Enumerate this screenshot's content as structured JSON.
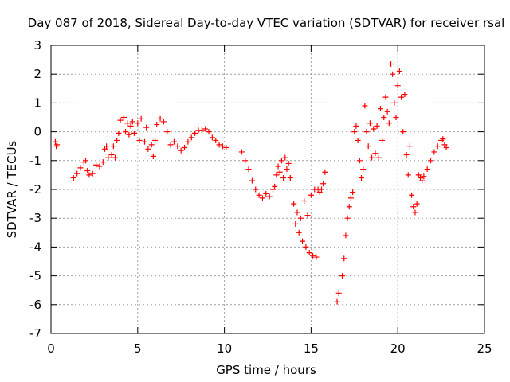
{
  "chart_data": {
    "type": "scatter",
    "title": "Day 087 of 2018, Sidereal Day-to-day VTEC variation (SDTVAR) for receiver rsal",
    "xlabel": "GPS time / hours",
    "ylabel": "SDTVAR / TECUs",
    "xlim": [
      0,
      25
    ],
    "ylim": [
      -7,
      3
    ],
    "xticks": [
      0,
      5,
      10,
      15,
      20,
      25
    ],
    "yticks": [
      3,
      2,
      1,
      0,
      -1,
      -2,
      -3,
      -4,
      -5,
      -6,
      -7
    ],
    "grid": true,
    "marker": "+",
    "color": "#ff0000",
    "series": [
      {
        "name": "SDTVAR",
        "points": [
          [
            0.25,
            -0.35
          ],
          [
            0.3,
            -0.5
          ],
          [
            0.35,
            -0.45
          ],
          [
            1.3,
            -1.6
          ],
          [
            1.5,
            -1.45
          ],
          [
            1.7,
            -1.25
          ],
          [
            1.9,
            -1.05
          ],
          [
            2.0,
            -1.0
          ],
          [
            2.1,
            -1.35
          ],
          [
            2.2,
            -1.5
          ],
          [
            2.4,
            -1.45
          ],
          [
            2.6,
            -1.15
          ],
          [
            2.8,
            -1.2
          ],
          [
            3.0,
            -1.05
          ],
          [
            3.1,
            -0.6
          ],
          [
            3.2,
            -0.5
          ],
          [
            3.3,
            -0.9
          ],
          [
            3.5,
            -0.8
          ],
          [
            3.6,
            -0.5
          ],
          [
            3.7,
            -0.9
          ],
          [
            3.8,
            -0.3
          ],
          [
            3.9,
            -0.05
          ],
          [
            4.0,
            0.4
          ],
          [
            4.2,
            0.5
          ],
          [
            4.3,
            0.0
          ],
          [
            4.4,
            0.3
          ],
          [
            4.5,
            -0.1
          ],
          [
            4.6,
            0.2
          ],
          [
            4.7,
            0.35
          ],
          [
            4.8,
            -0.05
          ],
          [
            5.0,
            0.3
          ],
          [
            5.1,
            -0.3
          ],
          [
            5.2,
            0.45
          ],
          [
            5.4,
            -0.35
          ],
          [
            5.5,
            0.15
          ],
          [
            5.6,
            -0.6
          ],
          [
            5.8,
            -0.45
          ],
          [
            5.9,
            -0.85
          ],
          [
            6.0,
            -0.3
          ],
          [
            6.1,
            0.25
          ],
          [
            6.3,
            0.45
          ],
          [
            6.5,
            0.35
          ],
          [
            6.7,
            0.0
          ],
          [
            6.9,
            -0.45
          ],
          [
            7.1,
            -0.35
          ],
          [
            7.3,
            -0.5
          ],
          [
            7.5,
            -0.65
          ],
          [
            7.7,
            -0.55
          ],
          [
            7.9,
            -0.35
          ],
          [
            8.1,
            -0.2
          ],
          [
            8.3,
            -0.05
          ],
          [
            8.5,
            0.05
          ],
          [
            8.7,
            0.05
          ],
          [
            8.9,
            0.1
          ],
          [
            9.1,
            0.0
          ],
          [
            9.3,
            -0.2
          ],
          [
            9.5,
            -0.3
          ],
          [
            9.7,
            -0.45
          ],
          [
            9.9,
            -0.5
          ],
          [
            10.1,
            -0.55
          ],
          [
            11.0,
            -0.7
          ],
          [
            11.2,
            -1.0
          ],
          [
            11.4,
            -1.3
          ],
          [
            11.6,
            -1.7
          ],
          [
            11.8,
            -2.0
          ],
          [
            12.0,
            -2.2
          ],
          [
            12.2,
            -2.3
          ],
          [
            12.4,
            -2.15
          ],
          [
            12.6,
            -2.25
          ],
          [
            12.8,
            -2.0
          ],
          [
            12.9,
            -1.9
          ],
          [
            13.0,
            -1.5
          ],
          [
            13.1,
            -1.2
          ],
          [
            13.2,
            -1.4
          ],
          [
            13.3,
            -1.0
          ],
          [
            13.4,
            -1.6
          ],
          [
            13.5,
            -0.9
          ],
          [
            13.6,
            -1.3
          ],
          [
            13.7,
            -1.1
          ],
          [
            13.8,
            -1.6
          ],
          [
            14.0,
            -2.5
          ],
          [
            14.1,
            -3.2
          ],
          [
            14.2,
            -2.8
          ],
          [
            14.3,
            -3.5
          ],
          [
            14.4,
            -3.0
          ],
          [
            14.5,
            -3.8
          ],
          [
            14.6,
            -2.4
          ],
          [
            14.7,
            -4.0
          ],
          [
            14.8,
            -2.9
          ],
          [
            14.9,
            -4.2
          ],
          [
            15.0,
            -2.2
          ],
          [
            15.1,
            -4.3
          ],
          [
            15.2,
            -2.0
          ],
          [
            15.3,
            -4.35
          ],
          [
            15.4,
            -2.0
          ],
          [
            15.5,
            -2.1
          ],
          [
            15.6,
            -2.0
          ],
          [
            15.7,
            -1.8
          ],
          [
            15.8,
            -1.4
          ],
          [
            16.5,
            -5.9
          ],
          [
            16.6,
            -5.6
          ],
          [
            16.8,
            -5.0
          ],
          [
            16.9,
            -4.4
          ],
          [
            17.0,
            -3.6
          ],
          [
            17.1,
            -3.0
          ],
          [
            17.2,
            -2.6
          ],
          [
            17.3,
            -2.3
          ],
          [
            17.4,
            -2.1
          ],
          [
            17.5,
            0.0
          ],
          [
            17.6,
            0.2
          ],
          [
            17.7,
            -0.3
          ],
          [
            17.8,
            -1.0
          ],
          [
            17.9,
            -1.6
          ],
          [
            18.0,
            -1.3
          ],
          [
            18.1,
            0.9
          ],
          [
            18.2,
            0.0
          ],
          [
            18.3,
            -0.5
          ],
          [
            18.4,
            0.3
          ],
          [
            18.5,
            -0.9
          ],
          [
            18.6,
            0.1
          ],
          [
            18.7,
            -0.75
          ],
          [
            18.8,
            0.2
          ],
          [
            18.9,
            -0.9
          ],
          [
            19.0,
            0.8
          ],
          [
            19.1,
            -0.3
          ],
          [
            19.2,
            0.5
          ],
          [
            19.3,
            1.2
          ],
          [
            19.4,
            0.7
          ],
          [
            19.5,
            0.3
          ],
          [
            19.6,
            2.35
          ],
          [
            19.7,
            2.0
          ],
          [
            19.8,
            1.0
          ],
          [
            19.9,
            0.5
          ],
          [
            20.0,
            1.6
          ],
          [
            20.1,
            2.1
          ],
          [
            20.2,
            1.2
          ],
          [
            20.3,
            0.0
          ],
          [
            20.4,
            1.3
          ],
          [
            20.5,
            -0.8
          ],
          [
            20.6,
            -1.5
          ],
          [
            20.7,
            -0.5
          ],
          [
            20.8,
            -2.2
          ],
          [
            20.9,
            -2.6
          ],
          [
            21.0,
            -2.8
          ],
          [
            21.1,
            -2.5
          ],
          [
            21.2,
            -1.5
          ],
          [
            21.3,
            -1.6
          ],
          [
            21.4,
            -1.7
          ],
          [
            21.5,
            -1.55
          ],
          [
            21.7,
            -1.3
          ],
          [
            21.9,
            -1.0
          ],
          [
            22.1,
            -0.7
          ],
          [
            22.3,
            -0.5
          ],
          [
            22.5,
            -0.3
          ],
          [
            22.6,
            -0.25
          ],
          [
            22.7,
            -0.45
          ],
          [
            22.8,
            -0.55
          ]
        ]
      }
    ]
  }
}
